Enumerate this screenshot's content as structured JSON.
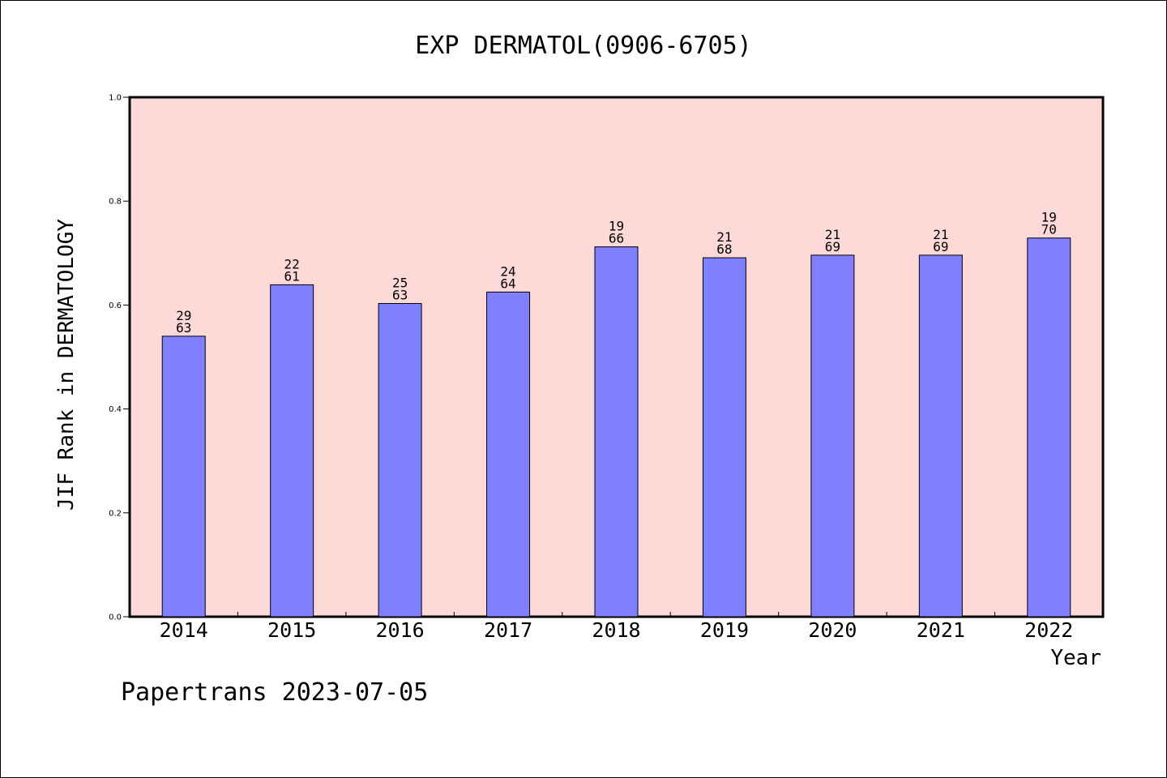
{
  "chart_data": {
    "type": "bar",
    "title": "EXP DERMATOL(0906-6705)",
    "xlabel": "Year",
    "ylabel": "JIF Rank in DERMATOLOGY",
    "ylim": [
      0.0,
      1.0
    ],
    "yticks": [
      "0.0",
      "0.2",
      "0.4",
      "0.6",
      "0.8",
      "1.0"
    ],
    "ytick_values": [
      0.0,
      0.2,
      0.4,
      0.6,
      0.8,
      1.0
    ],
    "categories": [
      "2014",
      "2015",
      "2016",
      "2017",
      "2018",
      "2019",
      "2020",
      "2021",
      "2022"
    ],
    "values": [
      0.54,
      0.639,
      0.603,
      0.625,
      0.712,
      0.691,
      0.696,
      0.696,
      0.729
    ],
    "bar_labels": [
      [
        "29",
        "63"
      ],
      [
        "22",
        "61"
      ],
      [
        "25",
        "63"
      ],
      [
        "24",
        "64"
      ],
      [
        "19",
        "66"
      ],
      [
        "21",
        "68"
      ],
      [
        "21",
        "69"
      ],
      [
        "21",
        "69"
      ],
      [
        "19",
        "70"
      ]
    ],
    "grid": false,
    "legend": "none",
    "colors": {
      "plot_background": "#fddad8",
      "bar_fill": "#8080ff",
      "bar_edge": "#000000",
      "axis": "#000000"
    }
  },
  "footer": {
    "text": "Papertrans 2023-07-05"
  }
}
